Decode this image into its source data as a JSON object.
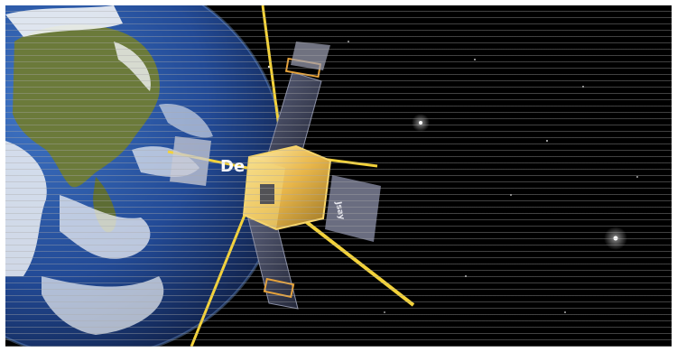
{
  "scene": {
    "title": "",
    "subject": "satellite-in-orbit",
    "earth_label": "earth",
    "panel_lettering_left": "De",
    "panel_lettering_right": "Jsay",
    "colors": {
      "space": "#000000",
      "ocean": "#2a4f9a",
      "land": "#6b7a3a",
      "cloud": "#f2f4f6",
      "antenna": "#f3d23a",
      "satellite_body": "#e6b64a",
      "solar_panel": "#3c4157",
      "scanline": "#aaaaaa"
    }
  }
}
